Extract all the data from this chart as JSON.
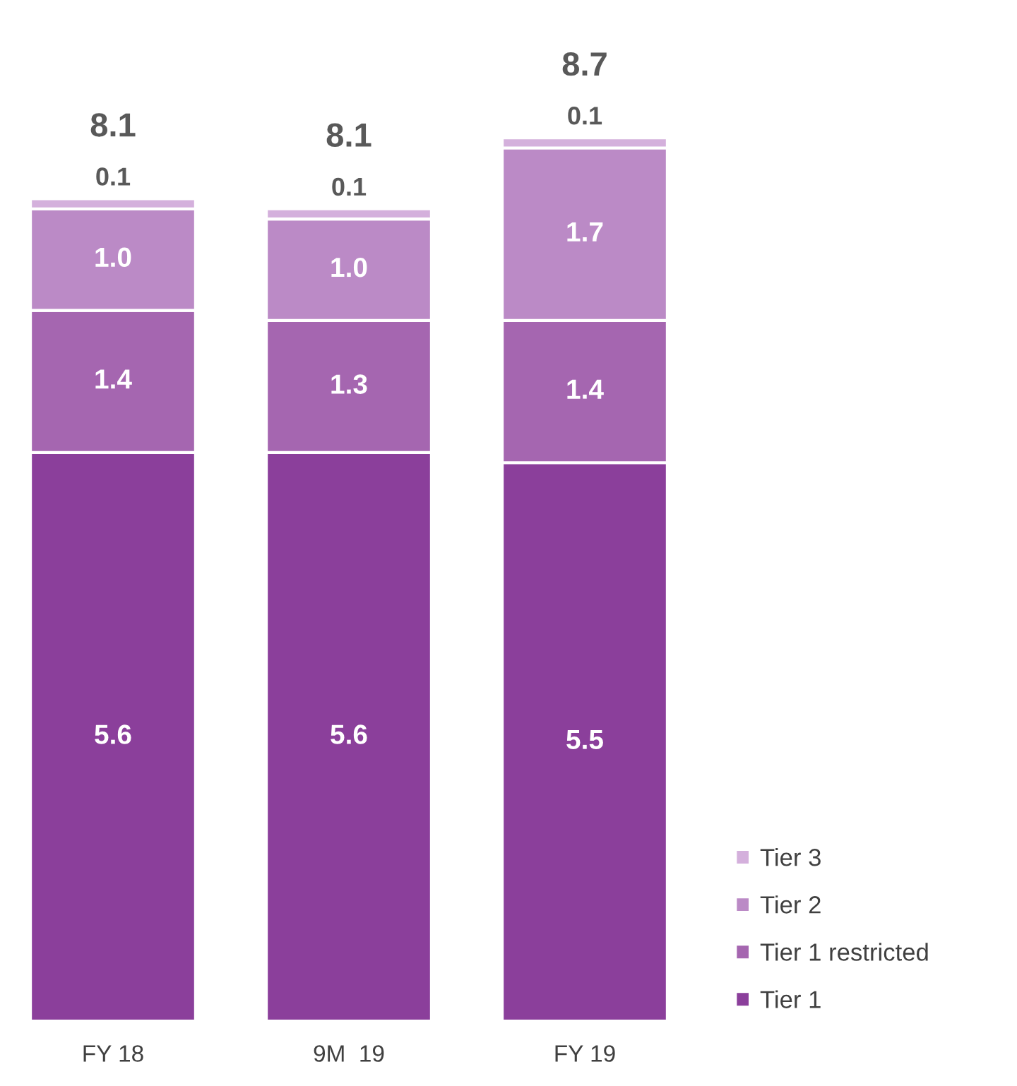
{
  "chart_data": {
    "type": "bar",
    "stacked": true,
    "legend": "bottom right",
    "grid": false,
    "categories": [
      "FY 18",
      "9M  19",
      "FY 19"
    ],
    "series": [
      {
        "name": "Tier 1",
        "color": "#8b3f9b",
        "values": [
          5.6,
          5.6,
          5.5
        ],
        "value_labels": [
          "5.6",
          "5.6",
          "5.5"
        ]
      },
      {
        "name": "Tier 1 restricted",
        "color": "#a566b0",
        "values": [
          1.4,
          1.3,
          1.4
        ],
        "value_labels": [
          "1.4",
          "1.3",
          "1.4"
        ]
      },
      {
        "name": "Tier 2",
        "color": "#bb8ac6",
        "values": [
          1.0,
          1.0,
          1.7
        ],
        "value_labels": [
          "1.0",
          "1.0",
          "1.7"
        ]
      },
      {
        "name": "Tier 3",
        "color": "#d4b0dc",
        "values": [
          0.1,
          0.1,
          0.1
        ],
        "value_labels": [
          "0.1",
          "0.1",
          "0.1"
        ]
      }
    ],
    "totals": [
      "8.1",
      "8.1",
      "8.7"
    ]
  }
}
